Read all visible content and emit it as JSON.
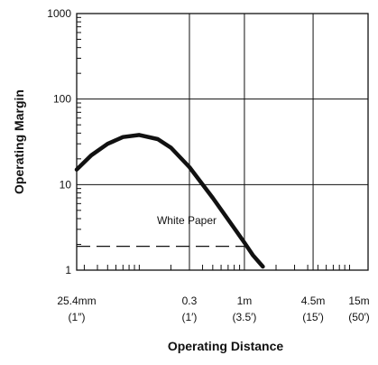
{
  "chart_data": {
    "type": "line",
    "title": "",
    "xlabel": "Operating Distance",
    "ylabel": "Operating Margin",
    "x_scale": "log",
    "y_scale": "log",
    "xlim": [
      "25.4mm",
      "15m"
    ],
    "ylim": [
      1,
      1000
    ],
    "grid": true,
    "legend": "none",
    "x_ticks": [
      {
        "label": "25.4mm",
        "sublabel": "(1″)"
      },
      {
        "label": "0.3",
        "sublabel": "(1′)"
      },
      {
        "label": "1m",
        "sublabel": "(3.5′)"
      },
      {
        "label": "4.5m",
        "sublabel": "(15′)"
      },
      {
        "label": "15m",
        "sublabel": "(50′)"
      }
    ],
    "y_ticks": [
      "1",
      "10",
      "100",
      "1000"
    ],
    "series": [
      {
        "x_m": [
          0.0254,
          0.035,
          0.05,
          0.07,
          0.1,
          0.15,
          0.2,
          0.3,
          0.5,
          0.8,
          1.0,
          1.2,
          1.5
        ],
        "y": [
          15,
          22,
          30,
          36,
          38,
          34,
          27,
          16,
          7.0,
          3.1,
          2.1,
          1.5,
          1.1
        ],
        "color": "#111111"
      }
    ],
    "reference_line": {
      "y": 1.9,
      "x_from": "25.4mm",
      "x_to": 1.0
    },
    "annotations": [
      {
        "text": "White Paper",
        "x_m": 0.3,
        "y": 3.8
      }
    ]
  }
}
